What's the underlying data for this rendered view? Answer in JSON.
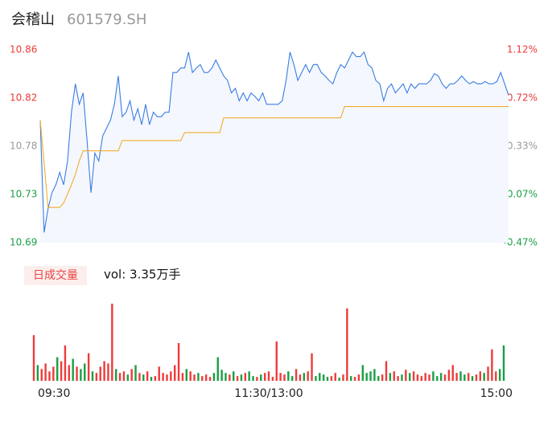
{
  "chart_data": [
    {
      "type": "line",
      "title": "会稽山",
      "subtitle": "601579.SH",
      "xlim": [
        0,
        120
      ],
      "ylim": [
        10.69,
        10.86
      ],
      "yticks": [
        {
          "value": 10.69,
          "label": "10.69"
        },
        {
          "value": 10.7325,
          "label": "10.73"
        },
        {
          "value": 10.775,
          "label": "10.78"
        },
        {
          "value": 10.8175,
          "label": "10.82"
        },
        {
          "value": 10.86,
          "label": "10.86"
        }
      ],
      "y2lim": [
        -0.47,
        1.12
      ],
      "y2ticks": [
        {
          "value": -0.47,
          "label": "-0.47%"
        },
        {
          "value": -0.0725,
          "label": "-0.07%"
        },
        {
          "value": 0.325,
          "label": "0.33%"
        },
        {
          "value": 0.7225,
          "label": "0.72%"
        },
        {
          "value": 1.12,
          "label": "1.12%"
        }
      ],
      "up_color": "#ee3b3b",
      "down_color": "#1a9e45",
      "flat_color": "#999999",
      "area_color": "#f4f7fd",
      "series": [
        {
          "name": "price",
          "color": "#3b7de3",
          "values": [
            10.798,
            10.699,
            10.72,
            10.734,
            10.741,
            10.752,
            10.741,
            10.762,
            10.805,
            10.83,
            10.812,
            10.822,
            10.78,
            10.734,
            10.769,
            10.762,
            10.784,
            10.791,
            10.798,
            10.812,
            10.837,
            10.801,
            10.805,
            10.815,
            10.798,
            10.808,
            10.794,
            10.812,
            10.794,
            10.805,
            10.801,
            10.801,
            10.805,
            10.805,
            10.84,
            10.84,
            10.844,
            10.844,
            10.858,
            10.84,
            10.844,
            10.847,
            10.84,
            10.84,
            10.844,
            10.851,
            10.844,
            10.837,
            10.833,
            10.822,
            10.826,
            10.815,
            10.822,
            10.815,
            10.822,
            10.819,
            10.815,
            10.822,
            10.812,
            10.812,
            10.812,
            10.812,
            10.815,
            10.833,
            10.858,
            10.847,
            10.833,
            10.84,
            10.847,
            10.84,
            10.847,
            10.847,
            10.84,
            10.837,
            10.833,
            10.83,
            10.84,
            10.847,
            10.844,
            10.851,
            10.858,
            10.854,
            10.854,
            10.858,
            10.847,
            10.844,
            10.833,
            10.83,
            10.815,
            10.826,
            10.83,
            10.822,
            10.826,
            10.83,
            10.822,
            10.83,
            10.826,
            10.83,
            10.83,
            10.83,
            10.833,
            10.839,
            10.837,
            10.83,
            10.826,
            10.83,
            10.83,
            10.833,
            10.837,
            10.833,
            10.83,
            10.832,
            10.83,
            10.83,
            10.832,
            10.83,
            10.83,
            10.832,
            10.84,
            10.83,
            10.82
          ]
        },
        {
          "name": "average",
          "color": "#f2ac2e",
          "values": [
            10.798,
            10.76,
            10.721,
            10.721,
            10.721,
            10.721,
            10.725,
            10.733,
            10.741,
            10.75,
            10.762,
            10.771,
            10.771,
            10.771,
            10.771,
            10.771,
            10.771,
            10.771,
            10.771,
            10.771,
            10.771,
            10.78,
            10.78,
            10.78,
            10.78,
            10.78,
            10.78,
            10.78,
            10.78,
            10.78,
            10.78,
            10.78,
            10.78,
            10.78,
            10.78,
            10.78,
            10.78,
            10.787,
            10.787,
            10.787,
            10.787,
            10.787,
            10.787,
            10.787,
            10.787,
            10.787,
            10.787,
            10.8,
            10.8,
            10.8,
            10.8,
            10.8,
            10.8,
            10.8,
            10.8,
            10.8,
            10.8,
            10.8,
            10.8,
            10.8,
            10.8,
            10.8,
            10.8,
            10.8,
            10.8,
            10.8,
            10.8,
            10.8,
            10.8,
            10.8,
            10.8,
            10.8,
            10.8,
            10.8,
            10.8,
            10.8,
            10.8,
            10.8,
            10.81,
            10.81,
            10.81,
            10.81,
            10.81,
            10.81,
            10.81,
            10.81,
            10.81,
            10.81,
            10.81,
            10.81,
            10.81,
            10.81,
            10.81,
            10.81,
            10.81,
            10.81,
            10.81,
            10.81,
            10.81,
            10.81,
            10.81,
            10.81,
            10.81,
            10.81,
            10.81,
            10.81,
            10.81,
            10.81,
            10.81,
            10.81,
            10.81,
            10.81,
            10.81,
            10.81,
            10.81,
            10.81,
            10.81,
            10.81,
            10.81,
            10.81,
            10.81
          ]
        }
      ]
    },
    {
      "type": "bar",
      "label": "日成交量",
      "annotation": "vol: 3.35万手",
      "xlim": [
        0,
        120
      ],
      "xticks": [
        {
          "value": 0,
          "label": "09:30"
        },
        {
          "value": 60,
          "label": "11:30/13:00"
        },
        {
          "value": 120,
          "label": "15:00"
        }
      ],
      "ylim": [
        0,
        100
      ],
      "values": [
        58,
        20,
        15,
        22,
        12,
        18,
        30,
        25,
        45,
        20,
        28,
        18,
        15,
        22,
        35,
        12,
        10,
        18,
        25,
        22,
        98,
        15,
        10,
        12,
        8,
        15,
        20,
        10,
        8,
        12,
        5,
        6,
        18,
        10,
        8,
        12,
        20,
        48,
        10,
        15,
        12,
        8,
        10,
        6,
        8,
        5,
        10,
        30,
        14,
        10,
        8,
        12,
        6,
        8,
        10,
        12,
        6,
        5,
        8,
        10,
        12,
        5,
        50,
        10,
        8,
        12,
        6,
        15,
        8,
        10,
        12,
        35,
        6,
        10,
        8,
        5,
        6,
        10,
        4,
        8,
        92,
        6,
        5,
        8,
        20,
        10,
        12,
        15,
        6,
        8,
        25,
        10,
        12,
        6,
        8,
        14,
        10,
        12,
        8,
        6,
        10,
        8,
        12,
        6,
        10,
        8,
        14,
        20,
        10,
        12,
        8,
        10,
        6,
        8,
        12,
        10,
        18,
        40,
        12,
        15,
        45
      ]
    }
  ]
}
